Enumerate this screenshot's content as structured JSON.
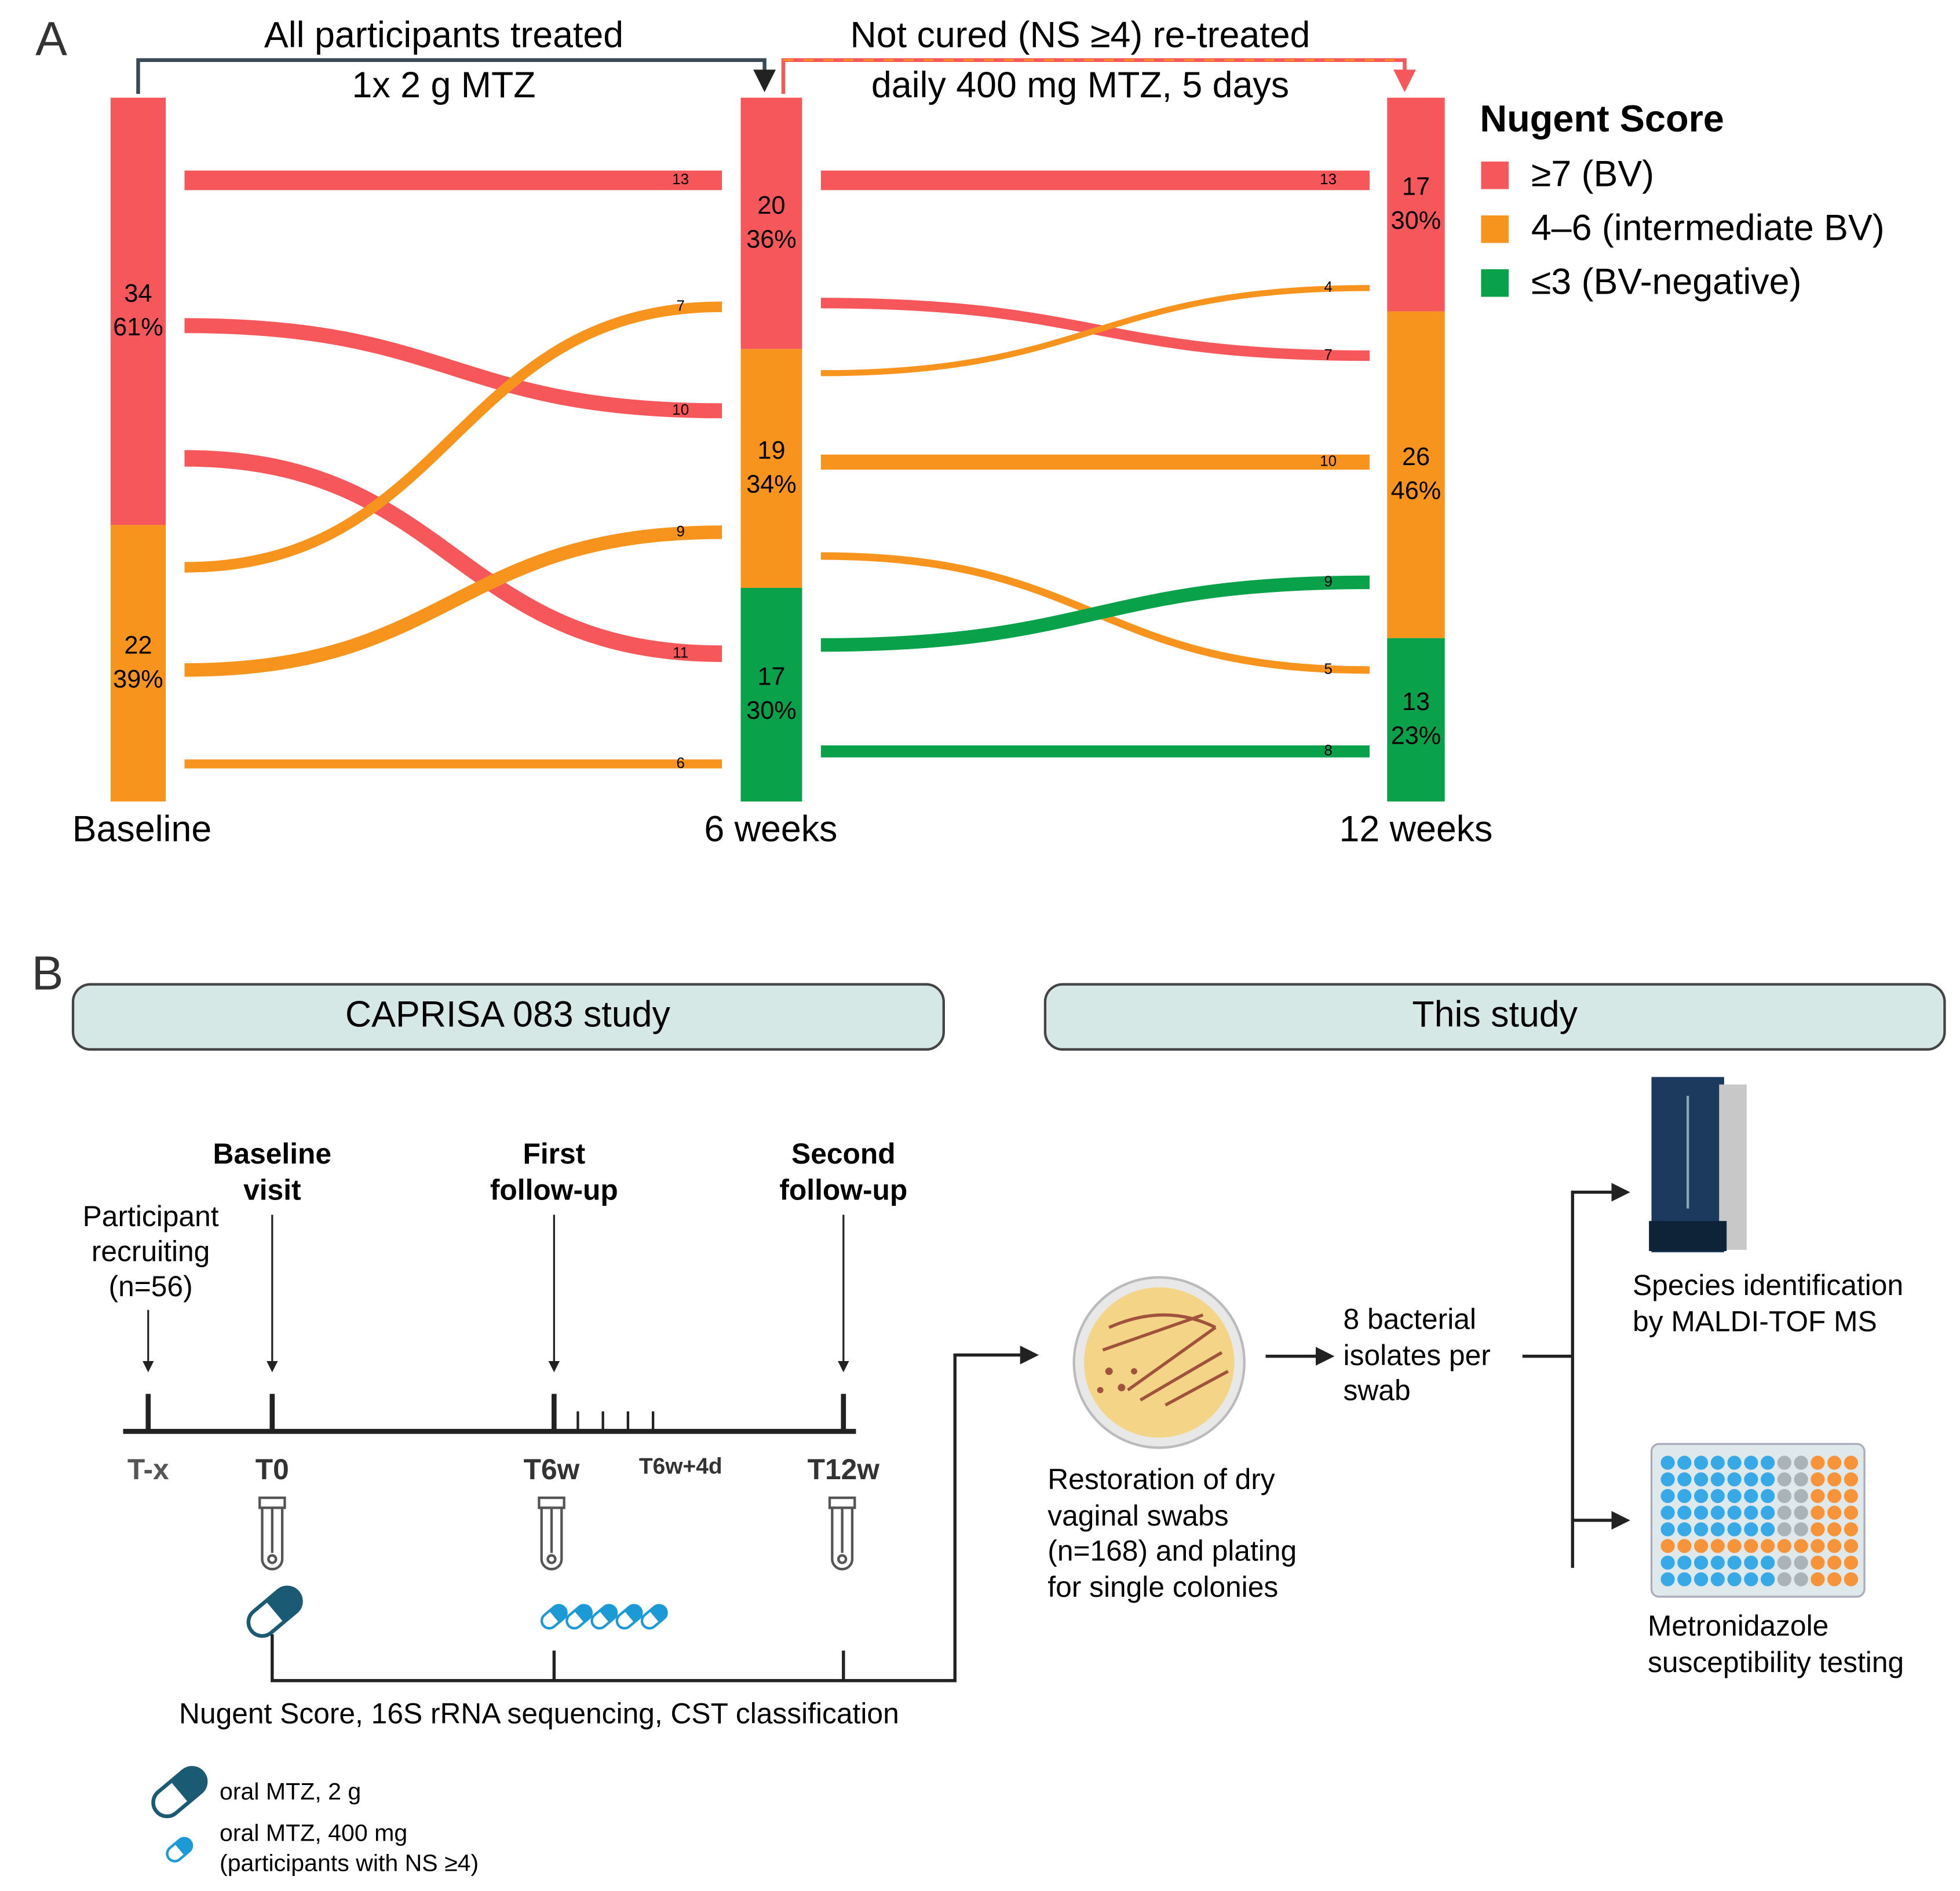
{
  "panel_a": {
    "label": "A",
    "stages": [
      "Baseline",
      "6 weeks",
      "12 weeks"
    ],
    "headers": [
      [
        "All participants treated",
        "1x 2 g MTZ"
      ],
      [
        "Not cured (NS ≥4) re-treated",
        "daily 400 mg MTZ, 5 days"
      ]
    ],
    "legend": {
      "title": "Nugent Score",
      "entries": [
        "≥7 (BV)",
        "4–6 (intermediate BV)",
        "≤3 (BV-negative)"
      ]
    },
    "colors": [
      "#f6575a",
      "#f7941d",
      "#0aa14b"
    ],
    "nodes": [
      [
        {
          "count": 34,
          "percent_label": "61%"
        },
        {
          "count": 22,
          "percent_label": "39%"
        }
      ],
      [
        {
          "count": 20,
          "percent_label": "36%"
        },
        {
          "count": 19,
          "percent_label": "34%"
        },
        {
          "count": 17,
          "percent_label": "30%"
        }
      ],
      [
        {
          "count": 17,
          "percent_label": "30%"
        },
        {
          "count": 26,
          "percent_label": "46%"
        },
        {
          "count": 13,
          "percent_label": "23%"
        }
      ]
    ],
    "flows": [
      [
        {
          "from": 0,
          "to": 0,
          "value": 13
        },
        {
          "from": 0,
          "to": 1,
          "value": 10
        },
        {
          "from": 0,
          "to": 2,
          "value": 11
        },
        {
          "from": 1,
          "to": 0,
          "value": 7
        },
        {
          "from": 1,
          "to": 1,
          "value": 9
        },
        {
          "from": 1,
          "to": 2,
          "value": 6
        }
      ],
      [
        {
          "from": 0,
          "to": 0,
          "value": 13
        },
        {
          "from": 0,
          "to": 1,
          "value": 7
        },
        {
          "from": 1,
          "to": 0,
          "value": 4
        },
        {
          "from": 1,
          "to": 1,
          "value": 10
        },
        {
          "from": 1,
          "to": 2,
          "value": 5
        },
        {
          "from": 2,
          "to": 1,
          "value": 9
        },
        {
          "from": 2,
          "to": 2,
          "value": 8
        }
      ]
    ]
  },
  "panel_b": {
    "label": "B",
    "boxes": [
      "CAPRISA 083 study",
      "This study"
    ],
    "visits": [
      [
        "Participant",
        "recruiting",
        "(n=56)"
      ],
      [
        "Baseline",
        "visit"
      ],
      [
        "First",
        "follow-up"
      ],
      [
        "Second",
        "follow-up"
      ]
    ],
    "timepoints": [
      "T-x",
      "T0",
      "T6w",
      "T6w+4d",
      "T12w"
    ],
    "measurements": "Nugent Score, 16S rRNA sequencing, CST classification",
    "legend": [
      [
        "oral MTZ, 2 g"
      ],
      [
        "oral MTZ, 400 mg",
        "(participants with NS ≥4)"
      ]
    ],
    "culture": [
      "Restoration of dry",
      "vaginal swabs",
      "(n=168) and plating",
      "for single colonies"
    ],
    "isolates": [
      "8 bacterial",
      "isolates per",
      "swab"
    ],
    "maldi": [
      "Species identification",
      "by MALDI-TOF MS"
    ],
    "ast": [
      "Metronidazole",
      "susceptibility testing"
    ]
  }
}
